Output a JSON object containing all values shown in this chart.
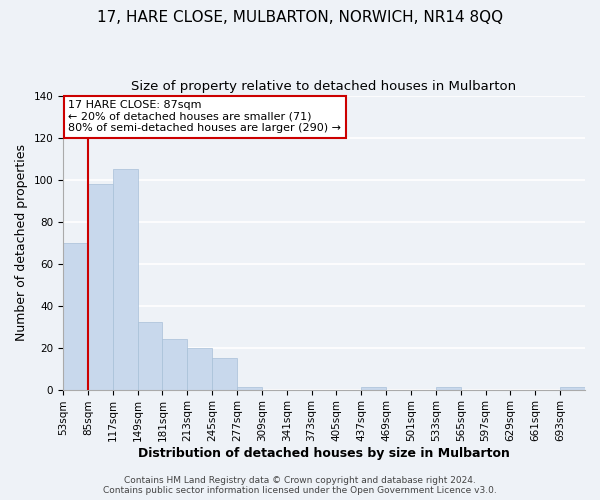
{
  "title": "17, HARE CLOSE, MULBARTON, NORWICH, NR14 8QQ",
  "subtitle": "Size of property relative to detached houses in Mulbarton",
  "xlabel": "Distribution of detached houses by size in Mulbarton",
  "ylabel": "Number of detached properties",
  "bin_labels": [
    "53sqm",
    "85sqm",
    "117sqm",
    "149sqm",
    "181sqm",
    "213sqm",
    "245sqm",
    "277sqm",
    "309sqm",
    "341sqm",
    "373sqm",
    "405sqm",
    "437sqm",
    "469sqm",
    "501sqm",
    "533sqm",
    "565sqm",
    "597sqm",
    "629sqm",
    "661sqm",
    "693sqm"
  ],
  "bar_values": [
    70,
    98,
    105,
    32,
    24,
    20,
    15,
    1,
    0,
    0,
    0,
    0,
    1,
    0,
    0,
    1,
    0,
    0,
    0,
    0,
    1
  ],
  "bar_color": "#c8d8ec",
  "bar_edge_color": "#a8c0d8",
  "property_line_bin_index": 1,
  "ylim": [
    0,
    140
  ],
  "yticks": [
    0,
    20,
    40,
    60,
    80,
    100,
    120,
    140
  ],
  "annotation_title": "17 HARE CLOSE: 87sqm",
  "annotation_line1": "← 20% of detached houses are smaller (71)",
  "annotation_line2": "80% of semi-detached houses are larger (290) →",
  "annotation_box_facecolor": "#ffffff",
  "annotation_box_edgecolor": "#cc0000",
  "footer1": "Contains HM Land Registry data © Crown copyright and database right 2024.",
  "footer2": "Contains public sector information licensed under the Open Government Licence v3.0.",
  "background_color": "#eef2f7",
  "grid_color": "#ffffff",
  "title_fontsize": 11,
  "subtitle_fontsize": 9.5,
  "axis_label_fontsize": 9,
  "tick_fontsize": 7.5,
  "annotation_fontsize": 8,
  "footer_fontsize": 6.5
}
